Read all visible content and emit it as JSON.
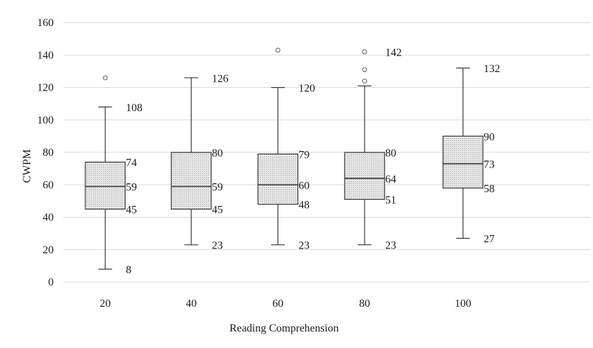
{
  "chart_data": {
    "type": "box",
    "title": "",
    "xlabel": "Reading Comprehension",
    "ylabel": "CWPM",
    "ylim": [
      0,
      160
    ],
    "yticks": [
      0,
      20,
      40,
      60,
      80,
      100,
      120,
      140,
      160
    ],
    "grid": true,
    "colors": {
      "box_fill": "#d8d8d8",
      "grid": "#d9d9d9",
      "line": "#333333",
      "outlier": "#555555"
    },
    "boxes": [
      {
        "category": "20",
        "min": 8,
        "q1": 45,
        "median": 59,
        "q3": 74,
        "max": 108,
        "outliers": [
          126
        ]
      },
      {
        "category": "40",
        "min": 23,
        "q1": 45,
        "median": 59,
        "q3": 80,
        "max": 126,
        "outliers": []
      },
      {
        "category": "60",
        "min": 23,
        "q1": 48,
        "median": 60,
        "q3": 79,
        "max": 120,
        "outliers": [
          143
        ]
      },
      {
        "category": "80",
        "min": 23,
        "q1": 51,
        "median": 64,
        "q3": 80,
        "max": 121,
        "outliers": [
          124,
          131,
          142
        ]
      },
      {
        "category": "100",
        "min": 27,
        "q1": 58,
        "median": 73,
        "q3": 90,
        "max": 132,
        "outliers": []
      }
    ],
    "labels": [
      {
        "box": 0,
        "value": 108,
        "text": "108"
      },
      {
        "box": 0,
        "value": 74,
        "text": "74"
      },
      {
        "box": 0,
        "value": 59,
        "text": "59"
      },
      {
        "box": 0,
        "value": 45,
        "text": "45"
      },
      {
        "box": 0,
        "value": 8,
        "text": "8"
      },
      {
        "box": 1,
        "value": 126,
        "text": "126"
      },
      {
        "box": 1,
        "value": 80,
        "text": "80"
      },
      {
        "box": 1,
        "value": 59,
        "text": "59"
      },
      {
        "box": 1,
        "value": 45,
        "text": "45"
      },
      {
        "box": 1,
        "value": 23,
        "text": "23"
      },
      {
        "box": 2,
        "value": 120,
        "text": "120"
      },
      {
        "box": 2,
        "value": 79,
        "text": "79"
      },
      {
        "box": 2,
        "value": 60,
        "text": "60"
      },
      {
        "box": 2,
        "value": 48,
        "text": "48"
      },
      {
        "box": 2,
        "value": 23,
        "text": "23"
      },
      {
        "box": 3,
        "value": 142,
        "text": "142"
      },
      {
        "box": 3,
        "value": 80,
        "text": "80"
      },
      {
        "box": 3,
        "value": 64,
        "text": "64"
      },
      {
        "box": 3,
        "value": 51,
        "text": "51"
      },
      {
        "box": 3,
        "value": 23,
        "text": "23"
      },
      {
        "box": 4,
        "value": 132,
        "text": "132"
      },
      {
        "box": 4,
        "value": 90,
        "text": "90"
      },
      {
        "box": 4,
        "value": 73,
        "text": "73"
      },
      {
        "box": 4,
        "value": 58,
        "text": "58"
      },
      {
        "box": 4,
        "value": 27,
        "text": "27"
      }
    ]
  }
}
